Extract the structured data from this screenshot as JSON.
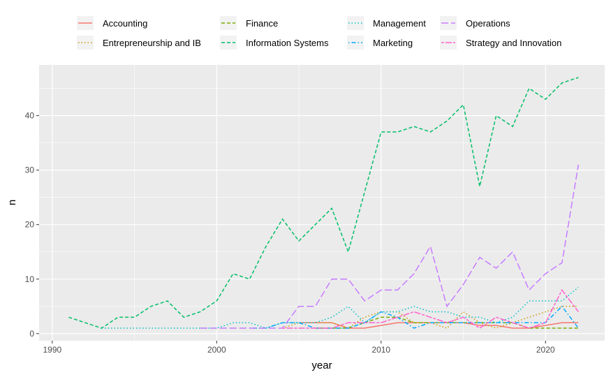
{
  "chart_data": {
    "type": "line",
    "xlabel": "year",
    "ylabel": "n",
    "xlim": [
      1989.2,
      2023.6
    ],
    "ylim": [
      -1.3,
      49.3
    ],
    "xticks": [
      1990,
      2000,
      2010,
      2020
    ],
    "yticks": [
      0,
      10,
      20,
      30,
      40
    ],
    "grid": true,
    "legend_position": "top",
    "series": [
      {
        "name": "Accounting",
        "color": "#F8766D",
        "dash": "solid",
        "x": [
          2005,
          2006,
          2007,
          2008,
          2009,
          2010,
          2011,
          2012,
          2013,
          2014,
          2015,
          2016,
          2017,
          2018,
          2019,
          2020,
          2021,
          2022
        ],
        "y": [
          2,
          2,
          2,
          1,
          1,
          1.5,
          2,
          2,
          2,
          2,
          2,
          1.5,
          1.5,
          1,
          1,
          1.5,
          2,
          2
        ]
      },
      {
        "name": "Entrepreneurship and IB",
        "color": "#CD9600",
        "dash": "dotted",
        "x": [
          2004,
          2005,
          2006,
          2007,
          2008,
          2009,
          2010,
          2011,
          2012,
          2013,
          2014,
          2015,
          2016,
          2017,
          2018,
          2019,
          2020,
          2021,
          2022
        ],
        "y": [
          1,
          2,
          2,
          2,
          1,
          3,
          4,
          4,
          2,
          2,
          1,
          4,
          2,
          1,
          2,
          3,
          4,
          5,
          5
        ]
      },
      {
        "name": "Finance",
        "color": "#7CAE00",
        "dash": "dashed",
        "x": [
          2006,
          2007,
          2008,
          2009,
          2010,
          2011,
          2012,
          2013,
          2014,
          2015,
          2016,
          2017,
          2018,
          2019,
          2020,
          2021,
          2022
        ],
        "y": [
          1,
          1,
          1,
          2,
          3,
          3,
          2,
          2,
          2,
          2,
          2,
          2,
          2,
          1,
          1,
          1,
          1
        ]
      },
      {
        "name": "Information Systems",
        "color": "#00BE67",
        "dash": "dashed",
        "x": [
          1991,
          1992,
          1993,
          1994,
          1995,
          1996,
          1997,
          1998,
          1999,
          2000,
          2001,
          2002,
          2003,
          2004,
          2005,
          2006,
          2007,
          2008,
          2009,
          2010,
          2011,
          2012,
          2013,
          2014,
          2015,
          2016,
          2017,
          2018,
          2019,
          2020,
          2021,
          2022
        ],
        "y": [
          3,
          2,
          1,
          3,
          3,
          5,
          6,
          3,
          4,
          6,
          11,
          10,
          16,
          21,
          17,
          20,
          23,
          15,
          26,
          37,
          37,
          38,
          37,
          39,
          42,
          27,
          40,
          38,
          45,
          43,
          46,
          47
        ]
      },
      {
        "name": "Management",
        "color": "#00BFC4",
        "dash": "dotted",
        "x": [
          1993,
          1994,
          1995,
          1996,
          1997,
          1998,
          1999,
          2000,
          2001,
          2002,
          2003,
          2004,
          2005,
          2006,
          2007,
          2008,
          2009,
          2010,
          2011,
          2012,
          2013,
          2014,
          2015,
          2016,
          2017,
          2018,
          2019,
          2020,
          2021,
          2022
        ],
        "y": [
          1,
          1,
          1,
          1,
          1,
          1,
          1,
          1,
          2,
          2,
          1,
          2,
          2,
          2,
          3,
          5,
          2,
          4,
          4,
          5,
          4,
          4,
          3,
          3,
          2,
          3,
          6,
          6,
          6,
          8.5
        ]
      },
      {
        "name": "Marketing",
        "color": "#00A9FF",
        "dash": "dashdot",
        "x": [
          2002,
          2003,
          2004,
          2005,
          2006,
          2007,
          2008,
          2009,
          2010,
          2011,
          2012,
          2013,
          2014,
          2015,
          2016,
          2017,
          2018,
          2019,
          2020,
          2021,
          2022
        ],
        "y": [
          1,
          1,
          2,
          2,
          1,
          1,
          1,
          2,
          4,
          3,
          1,
          2,
          2,
          2,
          2,
          2,
          2,
          2,
          2,
          5,
          1
        ]
      },
      {
        "name": "Operations",
        "color": "#C77CFF",
        "dash": "longdash",
        "x": [
          1999,
          2000,
          2001,
          2002,
          2003,
          2004,
          2005,
          2006,
          2007,
          2008,
          2009,
          2010,
          2011,
          2012,
          2013,
          2014,
          2015,
          2016,
          2017,
          2018,
          2019,
          2020,
          2021,
          2022
        ],
        "y": [
          1,
          1,
          1,
          1,
          1,
          1,
          5,
          5,
          10,
          10,
          6,
          8,
          8,
          11,
          16,
          5,
          9,
          14,
          12,
          15,
          8,
          11,
          13,
          31
        ]
      },
      {
        "name": "Strategy and Innovation",
        "color": "#FF61CC",
        "dash": "twodash",
        "x": [
          2004,
          2005,
          2006,
          2007,
          2008,
          2009,
          2010,
          2011,
          2012,
          2013,
          2014,
          2015,
          2016,
          2017,
          2018,
          2019,
          2020,
          2021,
          2022
        ],
        "y": [
          1,
          1,
          1,
          1,
          2,
          2,
          2,
          3,
          4,
          3,
          2,
          3,
          1,
          3,
          2,
          1,
          2,
          8,
          4
        ]
      }
    ]
  }
}
